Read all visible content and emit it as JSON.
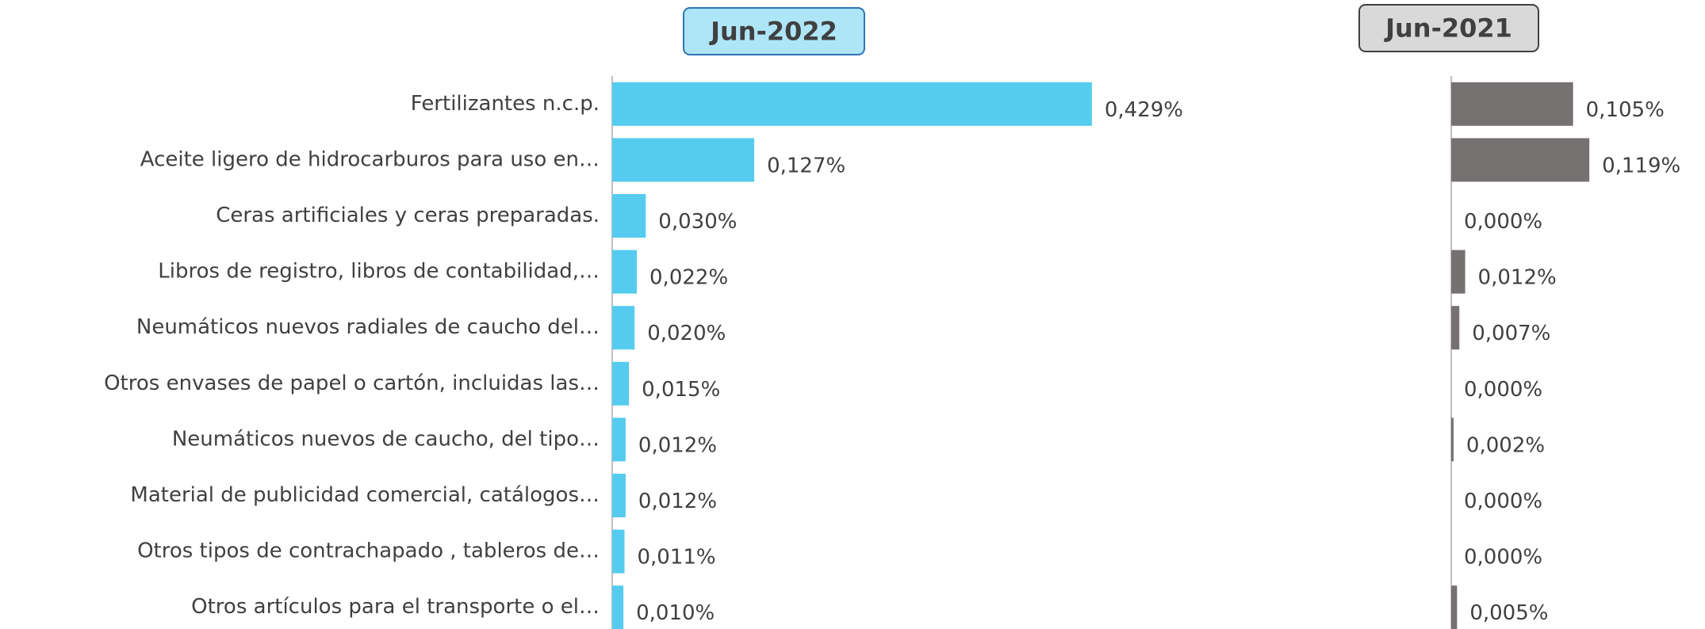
{
  "chart_data": [
    {
      "type": "bar",
      "orientation": "horizontal",
      "title": "Jun-2022",
      "color": "#55ccef",
      "categories": [
        "Fertilizantes n.c.p.",
        "Aceite ligero de hidrocarburos para uso en…",
        "Ceras artificiales y ceras preparadas.",
        "Libros de registro, libros de contabilidad,…",
        "Neumáticos nuevos radiales de caucho del…",
        "Otros envases de papel o cartón, incluidas las…",
        "Neumáticos nuevos de caucho, del tipo…",
        "Material de publicidad comercial, catálogos…",
        "Otros tipos de contrachapado , tableros de…",
        "Otros artículos para el transporte o el…"
      ],
      "values": [
        0.429,
        0.127,
        0.03,
        0.022,
        0.02,
        0.015,
        0.012,
        0.012,
        0.011,
        0.01
      ],
      "value_labels": [
        "0,429%",
        "0,127%",
        "0,030%",
        "0,022%",
        "0,020%",
        "0,015%",
        "0,012%",
        "0,012%",
        "0,011%",
        "0,010%"
      ],
      "xlim": [
        0,
        0.5
      ]
    },
    {
      "type": "bar",
      "orientation": "horizontal",
      "title": "Jun-2021",
      "color": "#767171",
      "values": [
        0.105,
        0.119,
        0.0,
        0.012,
        0.007,
        0.0,
        0.002,
        0.0,
        0.0,
        0.005
      ],
      "value_labels": [
        "0,105%",
        "0,119%",
        "0,000%",
        "0,012%",
        "0,007%",
        "0,000%",
        "0,002%",
        "0,000%",
        "0,000%",
        "0,005%"
      ],
      "xlim": [
        0,
        0.3
      ]
    }
  ]
}
